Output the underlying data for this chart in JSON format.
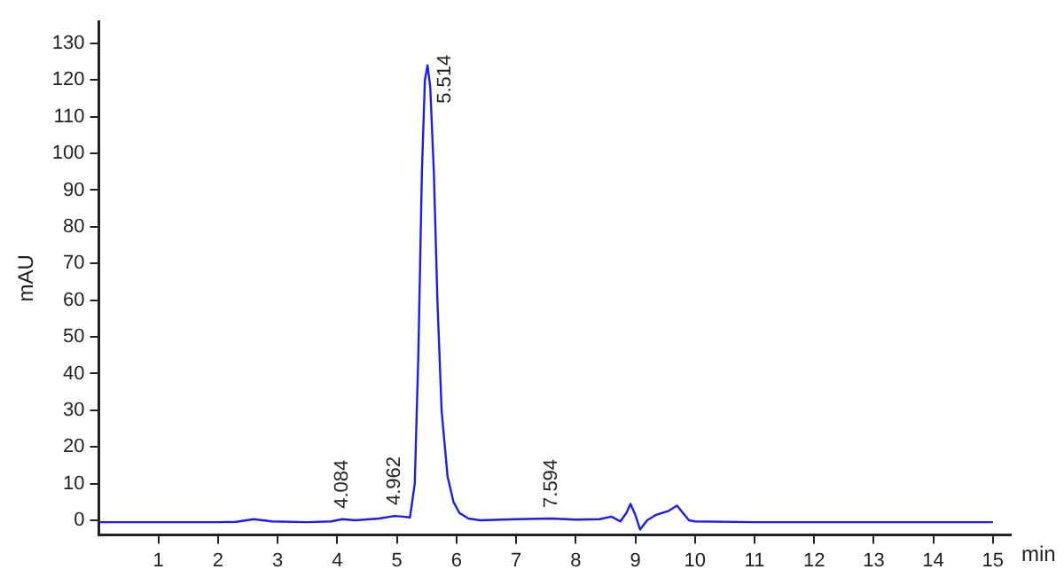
{
  "chart_data": {
    "type": "line",
    "xlabel": "min",
    "ylabel": "mAU",
    "x": [
      0,
      1,
      2,
      2.3,
      2.6,
      2.9,
      3.5,
      3.9,
      4.084,
      4.3,
      4.7,
      4.962,
      5.1,
      5.22,
      5.3,
      5.36,
      5.42,
      5.47,
      5.514,
      5.56,
      5.62,
      5.68,
      5.75,
      5.85,
      5.95,
      6.05,
      6.2,
      6.4,
      7,
      7.594,
      8,
      8.4,
      8.6,
      8.75,
      8.85,
      8.92,
      9,
      9.08,
      9.2,
      9.35,
      9.55,
      9.7,
      9.8,
      9.9,
      10,
      11,
      12,
      13,
      14,
      15
    ],
    "series": [
      {
        "color": "#1a1aff",
        "values": [
          -0.5,
          -0.5,
          -0.5,
          -0.4,
          0.3,
          -0.3,
          -0.5,
          -0.3,
          0.3,
          0,
          0.5,
          1.2,
          1,
          0.8,
          10,
          45,
          95,
          120,
          124,
          118,
          95,
          60,
          30,
          12,
          5,
          2,
          0.5,
          0,
          0.3,
          0.5,
          0.2,
          0.3,
          1,
          -0.3,
          2,
          4.5,
          1.5,
          -2.5,
          0,
          1.5,
          2.5,
          4,
          2,
          0,
          -0.3,
          -0.5,
          -0.5,
          -0.5,
          -0.5,
          -0.5
        ]
      }
    ],
    "xlim": [
      0,
      15.3
    ],
    "ylim": [
      -4,
      136
    ],
    "xticks": [
      1,
      2,
      3,
      4,
      5,
      6,
      7,
      8,
      9,
      10,
      11,
      12,
      13,
      14,
      15
    ],
    "yticks": [
      0,
      10,
      20,
      30,
      40,
      50,
      60,
      70,
      80,
      90,
      100,
      110,
      120,
      130
    ],
    "grid": false,
    "legend": false,
    "marker": "none",
    "line_style": "solid",
    "annotations": [
      {
        "text": "4.084",
        "x": 4.084,
        "y": 0.3
      },
      {
        "text": "4.962",
        "x": 4.962,
        "y": 1.2
      },
      {
        "text": "5.514",
        "x": 5.514,
        "y": 124
      },
      {
        "text": "7.594",
        "x": 7.594,
        "y": 0.5
      }
    ]
  }
}
